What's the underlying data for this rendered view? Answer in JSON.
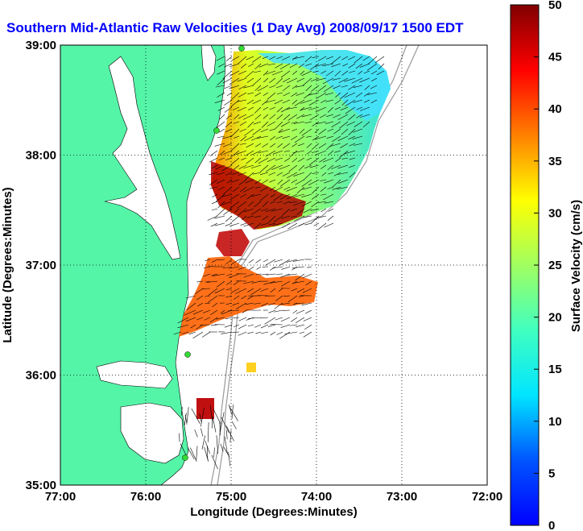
{
  "title": "Southern Mid-Atlantic Raw Velocities (1 Day Avg) 2008/09/17 1500 EDT",
  "title_color": "#0000ff",
  "xlabel": "Longitude (Degrees:Minutes)",
  "ylabel": "Latitude (Degrees:Minutes)",
  "colorbar_label": "Surface Velocity (cm/s)",
  "land_color": "#55f5a8",
  "chart_data": {
    "type": "heatmap",
    "x_ticks": [
      "77:00",
      "76:00",
      "75:00",
      "74:00",
      "73:00",
      "72:00"
    ],
    "y_ticks": [
      "39:00",
      "38:00",
      "37:00",
      "36:00",
      "35:00"
    ],
    "xlim": [
      -77,
      -72
    ],
    "ylim": [
      35,
      39
    ],
    "grid": true,
    "colorbar": {
      "min": 0,
      "max": 50,
      "ticks": [
        "0",
        "5",
        "10",
        "15",
        "20",
        "25",
        "30",
        "35",
        "40",
        "45",
        "50"
      ],
      "colormap": "jet"
    }
  }
}
